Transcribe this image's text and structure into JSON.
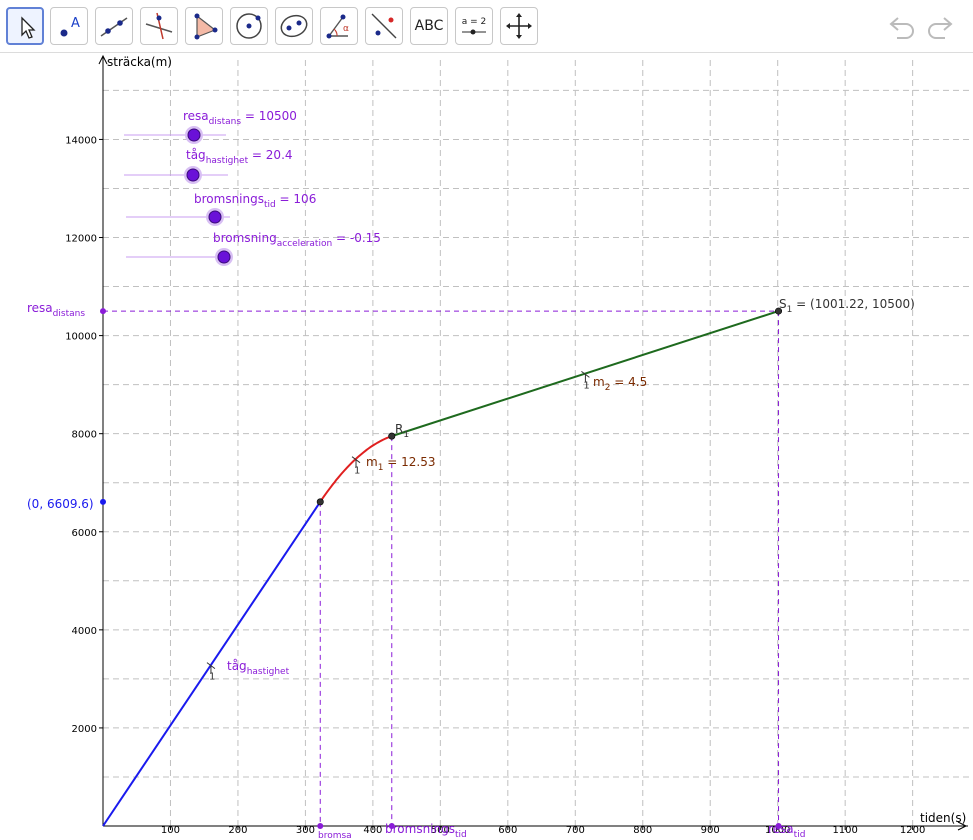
{
  "toolbar": {
    "tools": [
      {
        "name": "move-tool",
        "label": ""
      },
      {
        "name": "point-tool",
        "label": "A"
      },
      {
        "name": "line-tool",
        "label": ""
      },
      {
        "name": "perpendicular-tool",
        "label": ""
      },
      {
        "name": "polygon-tool",
        "label": ""
      },
      {
        "name": "circle-tool",
        "label": ""
      },
      {
        "name": "conic-tool",
        "label": ""
      },
      {
        "name": "angle-tool",
        "label": "α"
      },
      {
        "name": "reflect-tool",
        "label": ""
      },
      {
        "name": "text-tool",
        "label": "ABC"
      },
      {
        "name": "slider-tool",
        "label": "a = 2"
      },
      {
        "name": "move-graphics-tool",
        "label": ""
      }
    ],
    "undo_icon": "undo-icon",
    "redo_icon": "redo-icon"
  },
  "axes": {
    "x_label": "tiden(s)",
    "y_label": "sträcka(m)",
    "x_ticks": [
      "100",
      "200",
      "300",
      "400",
      "500",
      "600",
      "700",
      "800",
      "900",
      "1000",
      "1100",
      "1200"
    ],
    "y_ticks": [
      "2000",
      "4000",
      "6000",
      "8000",
      "10000",
      "12000",
      "14000"
    ]
  },
  "sliders": [
    {
      "base": "resa",
      "sub": "distans",
      "value": "10500"
    },
    {
      "base": "tåg",
      "sub": "hastighet",
      "value": "20.4"
    },
    {
      "base": "bromsnings",
      "sub": "tid",
      "value": "106"
    },
    {
      "base": "bromsning",
      "sub": "acceleration",
      "value": "-0.15"
    }
  ],
  "labels": {
    "S1_name": "S",
    "S1_sub": "1",
    "S1_value": " = (1001.22, 10500)",
    "R1_name": "R",
    "R1_sub": "1",
    "m1_name": "m",
    "m1_sub": "1",
    "m1_value": " = 12.53",
    "m2_name": "m",
    "m2_sub": "2",
    "m2_value": " = 4.5",
    "y_intercept": "(0, 6609.6)",
    "resa_base": "resa",
    "resa_sub": "distans",
    "tag_base": "tåg",
    "tag_sub": "hastighet",
    "bromsa_base": "",
    "bromsa_sub": "bromsa",
    "bromsnings_base": "bromsnings",
    "bromsnings_sub": "tid",
    "resetid_base": "resa",
    "resetid_sub": "tid",
    "slope_one": "1"
  },
  "colors": {
    "blue_line": "#1a1aee",
    "red_curve": "#e02020",
    "green_line": "#1e6a1e",
    "purple": "#8a1cd8",
    "slider_fill": "#6a11d8",
    "brown_text": "#7a2a00"
  },
  "chart_data": {
    "type": "line",
    "xlabel": "tiden(s)",
    "ylabel": "sträcka(m)",
    "xlim": [
      0,
      1250
    ],
    "ylim": [
      0,
      15000
    ],
    "grid": true,
    "series": [
      {
        "x": [
          0,
          322
        ],
        "y": [
          0,
          6609.6
        ]
      },
      {
        "x": [
          322,
          428
        ],
        "y": [
          6609.6,
          7950
        ]
      },
      {
        "x": [
          428,
          1001.22
        ],
        "y": [
          7950,
          10500
        ]
      }
    ],
    "points": [
      {
        "label": "S1",
        "x": 1001.22,
        "y": 10500
      },
      {
        "label": "R1",
        "x": 428,
        "y": 7950
      },
      {
        "label": "",
        "x": 322,
        "y": 6609.6
      },
      {
        "label": "(0, 6609.6)",
        "x": 0,
        "y": 6609.6
      }
    ],
    "slopes": [
      {
        "label": "m1",
        "value": 12.53
      },
      {
        "label": "m2",
        "value": 4.5
      }
    ]
  }
}
